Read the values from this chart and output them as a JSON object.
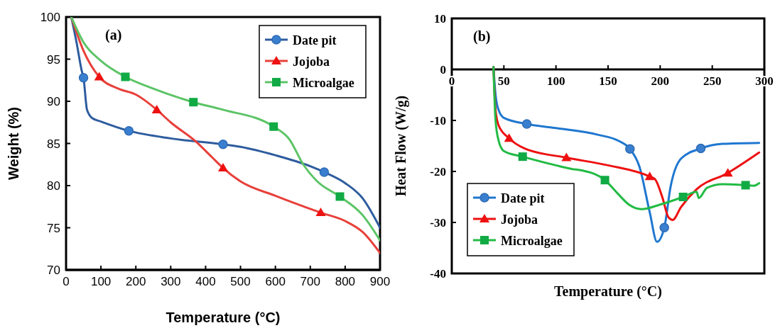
{
  "chart_data": [
    {
      "type": "line",
      "xlabel": "Temperature (°C)",
      "ylabel": "Weight (%)",
      "annotations": [
        "(a)"
      ],
      "xlim": [
        0,
        900
      ],
      "xticks": [
        0,
        100,
        200,
        300,
        400,
        500,
        600,
        700,
        800,
        900
      ],
      "ylim": [
        70,
        100
      ],
      "yticks": [
        70,
        75,
        80,
        85,
        90,
        95,
        100
      ],
      "grid": false,
      "legend": "top right",
      "series": [
        {
          "name": "Date pit",
          "color": "#2e5c9e",
          "type": "line",
          "x": [
            15,
            30,
            45,
            50,
            60,
            75,
            100,
            180,
            300,
            450,
            500,
            600,
            700,
            740,
            800,
            850,
            900
          ],
          "values": [
            100,
            97,
            93.6,
            92.8,
            89,
            88,
            87.6,
            86.5,
            85.6,
            84.9,
            84.6,
            83.6,
            82.3,
            81.6,
            80.3,
            78.5,
            75
          ]
        },
        {
          "color": "#3a7fcf",
          "type": "scatter",
          "marker": "circle",
          "x": [
            50,
            180,
            450,
            740
          ],
          "values": [
            92.8,
            86.5,
            84.9,
            81.6
          ]
        },
        {
          "name": "Jojoba",
          "color": "#e8403a",
          "type": "line",
          "x": [
            15,
            50,
            95,
            150,
            200,
            260,
            300,
            370,
            420,
            450,
            500,
            600,
            730,
            800,
            850,
            900
          ],
          "values": [
            100,
            96,
            92.9,
            91.5,
            90.8,
            89,
            87.5,
            85.3,
            83.3,
            82.1,
            80.5,
            78.8,
            76.8,
            75.8,
            74.5,
            72
          ]
        },
        {
          "color": "#ee1111",
          "type": "scatter",
          "marker": "triangle",
          "x": [
            95,
            260,
            450,
            730
          ],
          "values": [
            92.9,
            89,
            82.1,
            76.8
          ]
        },
        {
          "name": "Microalgae",
          "color": "#5cc466",
          "type": "line",
          "x": [
            15,
            50,
            100,
            170,
            250,
            365,
            450,
            595,
            640,
            680,
            720,
            785,
            850,
            900
          ],
          "values": [
            100,
            97,
            94.8,
            92.9,
            91.5,
            89.9,
            89,
            87,
            85.5,
            82.5,
            80.5,
            78.7,
            76.5,
            73.5
          ]
        },
        {
          "color": "#11aa44",
          "type": "scatter",
          "marker": "square",
          "x": [
            170,
            365,
            595,
            785
          ],
          "values": [
            92.9,
            89.9,
            87,
            78.7
          ]
        }
      ]
    },
    {
      "type": "line",
      "xlabel": "Temperature (°C)",
      "ylabel": "Heat Flow (W/g)",
      "annotations": [
        "(b)"
      ],
      "xlim": [
        0,
        300
      ],
      "xticks": [
        0,
        50,
        100,
        150,
        200,
        250,
        300
      ],
      "ylim": [
        -40,
        10
      ],
      "yticks": [
        -40,
        -30,
        -20,
        -10,
        0,
        10
      ],
      "grid": false,
      "legend": "bottom left",
      "series": [
        {
          "name": "Date pit",
          "color": "#1f77d0",
          "type": "line",
          "x": [
            40,
            42,
            45,
            50,
            72,
            100,
            140,
            160,
            171,
            180,
            190,
            197,
            204,
            210,
            220,
            239,
            260,
            295
          ],
          "values": [
            0.5,
            -5,
            -8,
            -9.5,
            -10.7,
            -11.5,
            -12.8,
            -14,
            -15.6,
            -19,
            -28,
            -33.8,
            -31,
            -23,
            -17.5,
            -15.5,
            -14.6,
            -14.4
          ]
        },
        {
          "color": "#3a7fcf",
          "type": "scatter",
          "marker": "circle",
          "x": [
            72,
            171,
            204,
            239
          ],
          "values": [
            -10.7,
            -15.6,
            -31,
            -15.5
          ]
        },
        {
          "name": "Jojoba",
          "color": "#ee1111",
          "type": "line",
          "x": [
            40,
            42,
            45,
            55,
            70,
            110,
            150,
            190,
            195,
            202,
            208,
            212,
            220,
            235,
            265,
            295
          ],
          "values": [
            0.5,
            -8,
            -11,
            -13.5,
            -15.5,
            -17.3,
            -18.8,
            -21,
            -21.5,
            -25,
            -29,
            -29.5,
            -27,
            -23.5,
            -20.3,
            -16.3
          ]
        },
        {
          "color": "#ee1111",
          "type": "scatter",
          "marker": "triangle",
          "x": [
            55,
            110,
            190,
            265
          ],
          "values": [
            -13.5,
            -17.3,
            -21,
            -20.3
          ]
        },
        {
          "name": "Microalgae",
          "color": "#22bb44",
          "type": "line",
          "x": [
            40,
            42,
            45,
            50,
            68,
            100,
            115,
            125,
            147,
            160,
            170,
            182,
            200,
            222,
            235,
            237,
            245,
            260,
            282,
            290,
            295
          ],
          "values": [
            0.5,
            -10,
            -14,
            -16,
            -17.1,
            -18.8,
            -19.5,
            -19.8,
            -21.7,
            -24.5,
            -26.5,
            -27.4,
            -26.5,
            -25,
            -24,
            -25.2,
            -23.2,
            -22.5,
            -22.7,
            -22.8,
            -22.3
          ]
        },
        {
          "color": "#11aa44",
          "type": "scatter",
          "marker": "square",
          "x": [
            68,
            147,
            222,
            282
          ],
          "values": [
            -17.1,
            -21.7,
            -25,
            -22.7
          ]
        }
      ]
    }
  ]
}
